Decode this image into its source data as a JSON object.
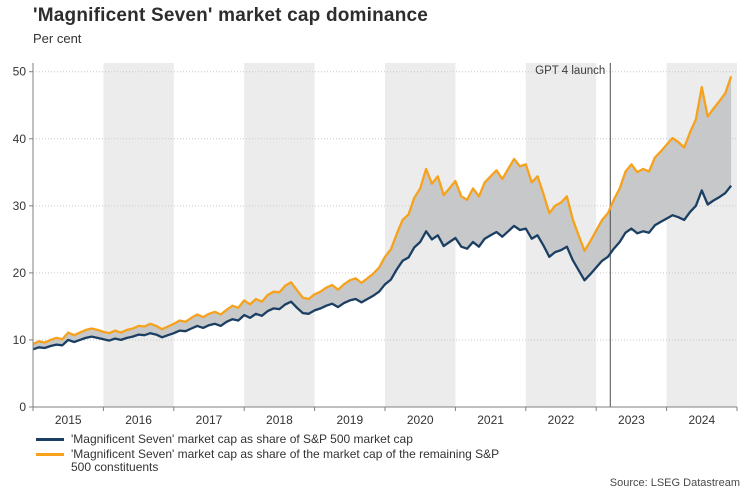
{
  "header": {
    "title": "'Magnificent Seven' market cap dominance",
    "subtitle": "Per cent"
  },
  "source": {
    "text": "Source: LSEG Datastream"
  },
  "colors": {
    "navy": "#1b3f63",
    "orange": "#f6a21c",
    "fill_between": "#c7c8ca",
    "stripe": "#ececec",
    "grid": "#c9c9c9",
    "axis": "#808080",
    "annotation_line": "#4d4d4d",
    "text": "#333333"
  },
  "legend": {
    "items": [
      {
        "label": "'Magnificent Seven' market cap as share of S&P 500 market cap",
        "color_key": "navy"
      },
      {
        "label": "'Magnificent Seven' market cap as share of the market cap of the remaining S&P 500 constituents",
        "color_key": "orange"
      }
    ]
  },
  "chart_data": {
    "type": "line",
    "title": "'Magnificent Seven' market cap dominance",
    "ylabel": "Per cent",
    "x_unit": "year",
    "x_start": 2015.0,
    "x_step": 0.0833333,
    "x_axis": {
      "range": [
        2015,
        2025
      ],
      "tick_years": [
        2015,
        2016,
        2017,
        2018,
        2019,
        2020,
        2021,
        2022,
        2023,
        2024,
        2025
      ],
      "labels": [
        "2015",
        "2016",
        "2017",
        "2018",
        "2019",
        "2020",
        "2021",
        "2022",
        "2023",
        "2024"
      ]
    },
    "y_axis": {
      "range": [
        0,
        51.3
      ],
      "ticks": [
        0,
        10,
        20,
        30,
        40,
        50
      ]
    },
    "stripes_years": [
      2016,
      2018,
      2020,
      2022,
      2024
    ],
    "grid": "dotted horizontal",
    "legend_position": "bottom-left",
    "fill_between_series": true,
    "annotation": {
      "label": "GPT 4 launch",
      "x_year": 2023.2
    },
    "series": [
      {
        "name": "'Magnificent Seven' market cap as share of S&P 500 market cap",
        "color_key": "navy",
        "values": [
          8.6,
          8.9,
          8.8,
          9.1,
          9.3,
          9.2,
          10.0,
          9.7,
          10.0,
          10.3,
          10.5,
          10.3,
          10.1,
          9.9,
          10.2,
          10.0,
          10.3,
          10.5,
          10.8,
          10.7,
          11.0,
          10.8,
          10.4,
          10.7,
          11.0,
          11.4,
          11.3,
          11.7,
          12.1,
          11.8,
          12.2,
          12.4,
          12.1,
          12.7,
          13.1,
          12.9,
          13.7,
          13.3,
          13.9,
          13.6,
          14.3,
          14.7,
          14.6,
          15.3,
          15.7,
          14.8,
          14.0,
          13.9,
          14.4,
          14.7,
          15.1,
          15.4,
          14.9,
          15.5,
          15.9,
          16.1,
          15.6,
          16.1,
          16.6,
          17.2,
          18.3,
          19.0,
          20.5,
          21.8,
          22.3,
          23.8,
          24.6,
          26.2,
          25.0,
          25.6,
          24.0,
          24.6,
          25.2,
          23.9,
          23.6,
          24.6,
          23.9,
          25.1,
          25.6,
          26.1,
          25.4,
          26.2,
          27.0,
          26.4,
          26.6,
          25.1,
          25.6,
          24.1,
          22.4,
          23.1,
          23.4,
          23.9,
          21.9,
          20.4,
          18.9,
          19.8,
          20.8,
          21.8,
          22.4,
          23.6,
          24.6,
          26.0,
          26.6,
          25.9,
          26.2,
          26.0,
          27.1,
          27.6,
          28.1,
          28.6,
          28.3,
          27.9,
          29.1,
          30.0,
          32.3,
          30.2,
          30.8,
          31.3,
          31.9,
          33.0
        ]
      },
      {
        "name": "'Magnificent Seven' market cap as share of the market cap of the remaining S&P 500 constituents",
        "color_key": "orange",
        "values": [
          9.4,
          9.8,
          9.6,
          10.0,
          10.3,
          10.1,
          11.1,
          10.7,
          11.1,
          11.5,
          11.7,
          11.5,
          11.2,
          11.0,
          11.4,
          11.1,
          11.5,
          11.7,
          12.1,
          12.0,
          12.4,
          12.1,
          11.6,
          12.0,
          12.4,
          12.9,
          12.7,
          13.3,
          13.8,
          13.4,
          13.9,
          14.2,
          13.8,
          14.5,
          15.1,
          14.8,
          15.9,
          15.3,
          16.1,
          15.7,
          16.7,
          17.2,
          17.1,
          18.1,
          18.6,
          17.4,
          16.3,
          16.1,
          16.8,
          17.2,
          17.8,
          18.2,
          17.5,
          18.3,
          18.9,
          19.2,
          18.5,
          19.2,
          19.9,
          20.8,
          22.4,
          23.5,
          25.8,
          27.9,
          28.7,
          31.2,
          32.6,
          35.5,
          33.3,
          34.4,
          31.6,
          32.6,
          33.7,
          31.4,
          30.9,
          32.6,
          31.4,
          33.5,
          34.4,
          35.3,
          34.0,
          35.5,
          37.0,
          35.9,
          36.2,
          33.5,
          34.4,
          31.8,
          28.9,
          30.0,
          30.5,
          31.4,
          28.0,
          25.6,
          23.3,
          24.7,
          26.3,
          27.9,
          28.9,
          30.9,
          32.6,
          35.1,
          36.2,
          35.0,
          35.5,
          35.1,
          37.2,
          38.1,
          39.1,
          40.1,
          39.5,
          38.7,
          41.0,
          42.9,
          47.7,
          43.3,
          44.5,
          45.6,
          46.8,
          49.3
        ]
      }
    ]
  }
}
